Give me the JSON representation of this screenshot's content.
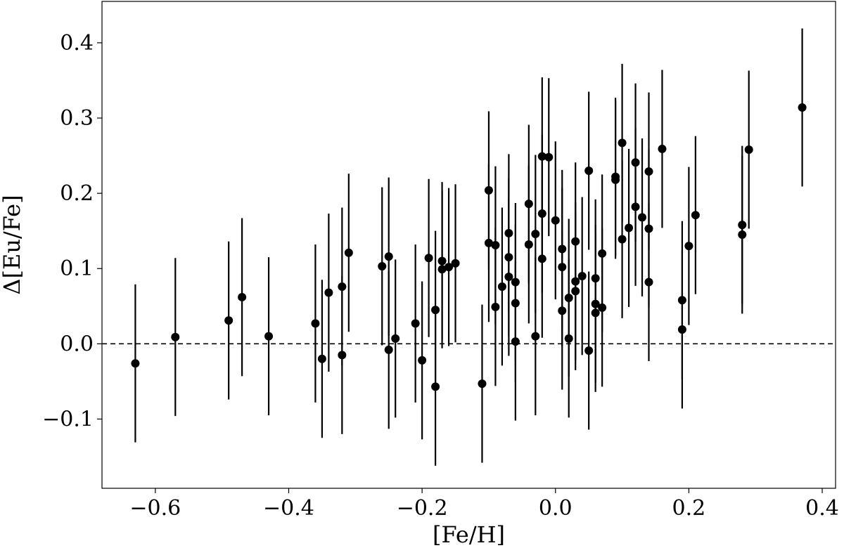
{
  "chart_data": {
    "type": "scatter",
    "xlabel": "[Fe/H]",
    "ylabel": "Δ[Eu/Fe]",
    "xlim": [
      -0.68,
      0.42
    ],
    "ylim": [
      -0.192,
      0.455
    ],
    "xticks": [
      -0.6,
      -0.4,
      -0.2,
      0.0,
      0.2,
      0.4
    ],
    "xtick_labels": [
      "−0.6",
      "−0.4",
      "−0.2",
      "0.0",
      "0.2",
      "0.4"
    ],
    "yticks": [
      -0.1,
      0.0,
      0.1,
      0.2,
      0.3,
      0.4
    ],
    "ytick_labels": [
      "−0.1",
      "0.0",
      "0.1",
      "0.2",
      "0.3",
      "0.4"
    ],
    "grid": false,
    "reference_line": {
      "y": 0.0,
      "style": "dashed"
    },
    "error_bar": 0.105,
    "points": [
      {
        "x": -0.63,
        "y": -0.026
      },
      {
        "x": -0.57,
        "y": 0.009
      },
      {
        "x": -0.49,
        "y": 0.031
      },
      {
        "x": -0.47,
        "y": 0.062
      },
      {
        "x": -0.43,
        "y": 0.01
      },
      {
        "x": -0.36,
        "y": 0.027
      },
      {
        "x": -0.35,
        "y": -0.02
      },
      {
        "x": -0.34,
        "y": 0.068
      },
      {
        "x": -0.32,
        "y": 0.076
      },
      {
        "x": -0.32,
        "y": -0.015
      },
      {
        "x": -0.31,
        "y": 0.121
      },
      {
        "x": -0.26,
        "y": 0.103
      },
      {
        "x": -0.25,
        "y": 0.116
      },
      {
        "x": -0.25,
        "y": -0.008
      },
      {
        "x": -0.24,
        "y": 0.007
      },
      {
        "x": -0.21,
        "y": 0.027
      },
      {
        "x": -0.2,
        "y": -0.022
      },
      {
        "x": -0.19,
        "y": 0.114
      },
      {
        "x": -0.18,
        "y": 0.045
      },
      {
        "x": -0.18,
        "y": -0.057
      },
      {
        "x": -0.17,
        "y": 0.11
      },
      {
        "x": -0.17,
        "y": 0.099
      },
      {
        "x": -0.16,
        "y": 0.102
      },
      {
        "x": -0.15,
        "y": 0.107
      },
      {
        "x": -0.11,
        "y": -0.053
      },
      {
        "x": -0.1,
        "y": 0.204
      },
      {
        "x": -0.1,
        "y": 0.134
      },
      {
        "x": -0.09,
        "y": 0.131
      },
      {
        "x": -0.09,
        "y": 0.049
      },
      {
        "x": -0.08,
        "y": 0.076
      },
      {
        "x": -0.07,
        "y": 0.147
      },
      {
        "x": -0.07,
        "y": 0.115
      },
      {
        "x": -0.07,
        "y": 0.089
      },
      {
        "x": -0.06,
        "y": 0.082
      },
      {
        "x": -0.06,
        "y": 0.054
      },
      {
        "x": -0.06,
        "y": 0.003
      },
      {
        "x": -0.04,
        "y": 0.186
      },
      {
        "x": -0.04,
        "y": 0.132
      },
      {
        "x": -0.03,
        "y": 0.146
      },
      {
        "x": -0.03,
        "y": 0.01
      },
      {
        "x": -0.02,
        "y": 0.249
      },
      {
        "x": -0.02,
        "y": 0.173
      },
      {
        "x": -0.02,
        "y": 0.113
      },
      {
        "x": -0.01,
        "y": 0.248
      },
      {
        "x": 0.0,
        "y": 0.164
      },
      {
        "x": 0.01,
        "y": 0.126
      },
      {
        "x": 0.01,
        "y": 0.102
      },
      {
        "x": 0.01,
        "y": 0.044
      },
      {
        "x": 0.02,
        "y": 0.061
      },
      {
        "x": 0.02,
        "y": 0.007
      },
      {
        "x": 0.03,
        "y": 0.136
      },
      {
        "x": 0.03,
        "y": 0.083
      },
      {
        "x": 0.03,
        "y": 0.07
      },
      {
        "x": 0.04,
        "y": 0.09
      },
      {
        "x": 0.05,
        "y": 0.23
      },
      {
        "x": 0.05,
        "y": -0.009
      },
      {
        "x": 0.06,
        "y": 0.087
      },
      {
        "x": 0.06,
        "y": 0.053
      },
      {
        "x": 0.06,
        "y": 0.041
      },
      {
        "x": 0.07,
        "y": 0.12
      },
      {
        "x": 0.07,
        "y": 0.048
      },
      {
        "x": 0.09,
        "y": 0.222
      },
      {
        "x": 0.09,
        "y": 0.218
      },
      {
        "x": 0.1,
        "y": 0.267
      },
      {
        "x": 0.1,
        "y": 0.139
      },
      {
        "x": 0.11,
        "y": 0.154
      },
      {
        "x": 0.12,
        "y": 0.241
      },
      {
        "x": 0.12,
        "y": 0.182
      },
      {
        "x": 0.13,
        "y": 0.168
      },
      {
        "x": 0.14,
        "y": 0.229
      },
      {
        "x": 0.14,
        "y": 0.153
      },
      {
        "x": 0.14,
        "y": 0.082
      },
      {
        "x": 0.16,
        "y": 0.259
      },
      {
        "x": 0.19,
        "y": 0.058
      },
      {
        "x": 0.19,
        "y": 0.019
      },
      {
        "x": 0.2,
        "y": 0.13
      },
      {
        "x": 0.21,
        "y": 0.171
      },
      {
        "x": 0.28,
        "y": 0.158
      },
      {
        "x": 0.28,
        "y": 0.145
      },
      {
        "x": 0.29,
        "y": 0.258
      },
      {
        "x": 0.37,
        "y": 0.314
      }
    ]
  }
}
